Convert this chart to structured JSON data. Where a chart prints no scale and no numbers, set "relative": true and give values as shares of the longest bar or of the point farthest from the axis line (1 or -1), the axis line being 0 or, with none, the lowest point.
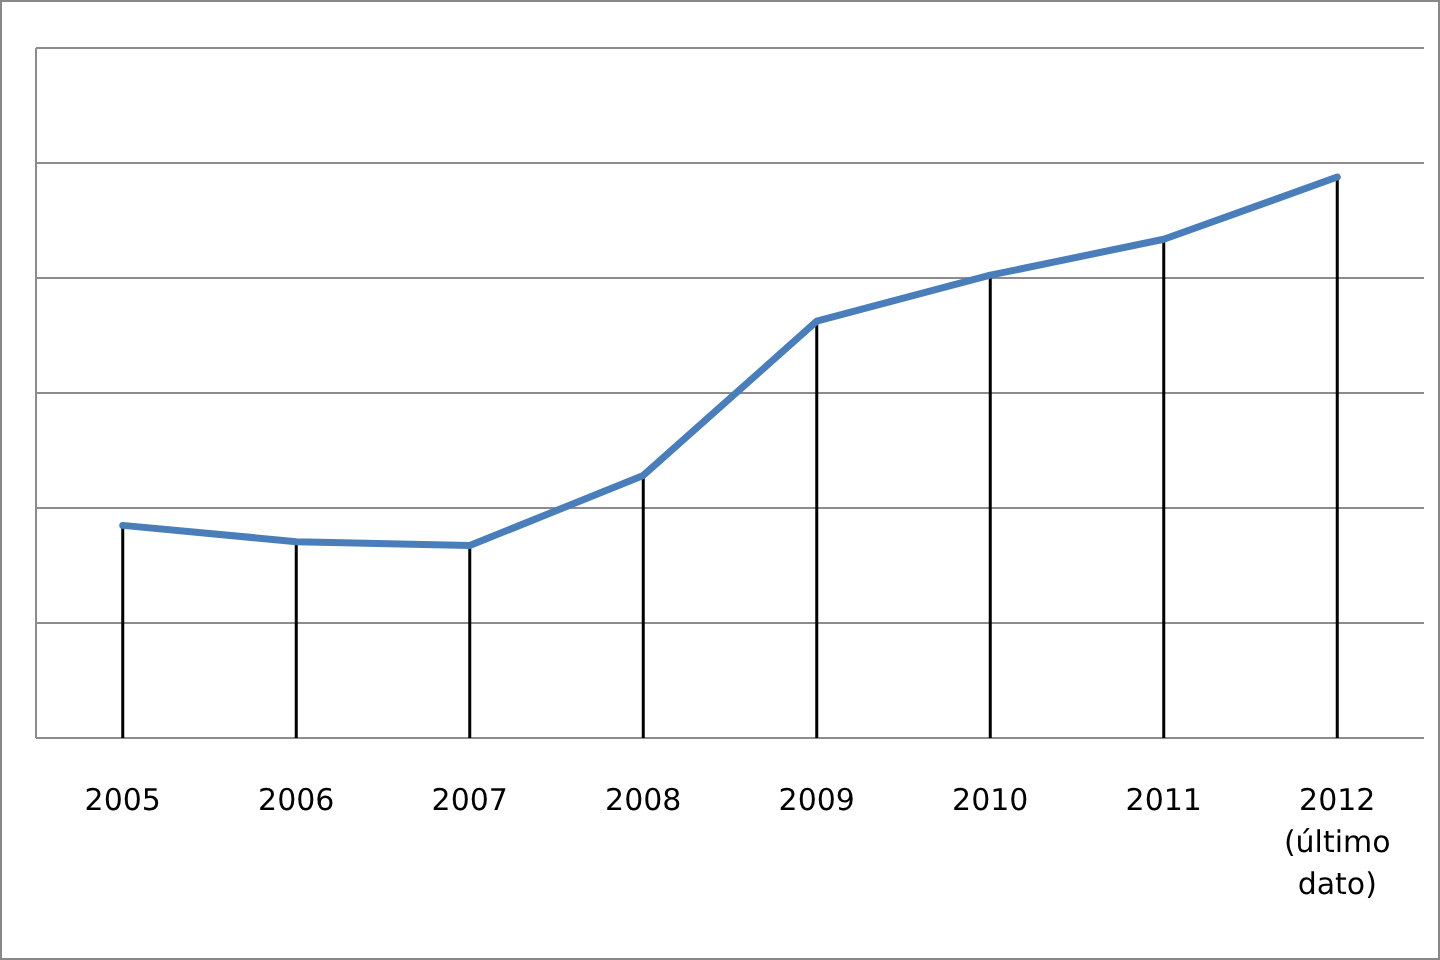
{
  "chart_data": {
    "type": "line",
    "relative": true,
    "categories": [
      "2005",
      "2006",
      "2007",
      "2008",
      "2009",
      "2010",
      "2011",
      "2012 (último dato)"
    ],
    "series": [
      {
        "type": "bar",
        "color": "#000000",
        "values": [
          0.379,
          0.35,
          0.343,
          0.468,
          0.743,
          0.825,
          0.889,
          1
        ]
      },
      {
        "color": "#4a7ebb",
        "values": [
          0.379,
          0.35,
          0.343,
          0.468,
          0.743,
          0.825,
          0.889,
          1
        ]
      }
    ],
    "grid": "y",
    "marker": "none",
    "line_style": "solid"
  }
}
